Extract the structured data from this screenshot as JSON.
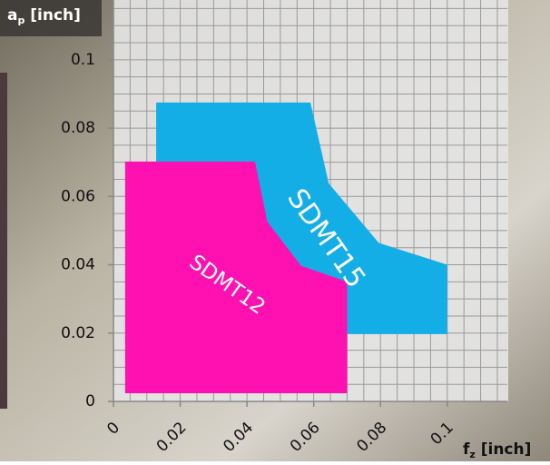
{
  "chart_data": {
    "type": "area",
    "y_label": [
      "a",
      "p",
      " [inch]"
    ],
    "x_label": [
      "f",
      "z",
      " [inch]"
    ],
    "xlim": [
      0,
      0.118
    ],
    "ylim": [
      0,
      0.1175
    ],
    "xticks": [
      0,
      0.02,
      0.04,
      0.06,
      0.08,
      0.1
    ],
    "yticks": [
      0,
      0.02,
      0.04,
      0.06,
      0.08,
      0.1
    ],
    "grid": true,
    "grid_step": 0.005,
    "series": [
      {
        "name": "SDMT15",
        "color": "#14aee6",
        "x": [
          0.0128,
          0.059,
          0.0645,
          0.0795,
          0.1,
          0.1,
          0.07,
          0.0128
        ],
        "y": [
          0.0875,
          0.0875,
          0.0638,
          0.0464,
          0.04,
          0.0197,
          0.0197,
          0.07
        ]
      },
      {
        "name": "SDMT12",
        "color": "#ff10b0",
        "x": [
          0.0035,
          0.0424,
          0.0461,
          0.0562,
          0.07,
          0.07,
          0.0035
        ],
        "y": [
          0.0702,
          0.0702,
          0.0526,
          0.0397,
          0.035,
          0.0024,
          0.0024
        ]
      }
    ]
  }
}
